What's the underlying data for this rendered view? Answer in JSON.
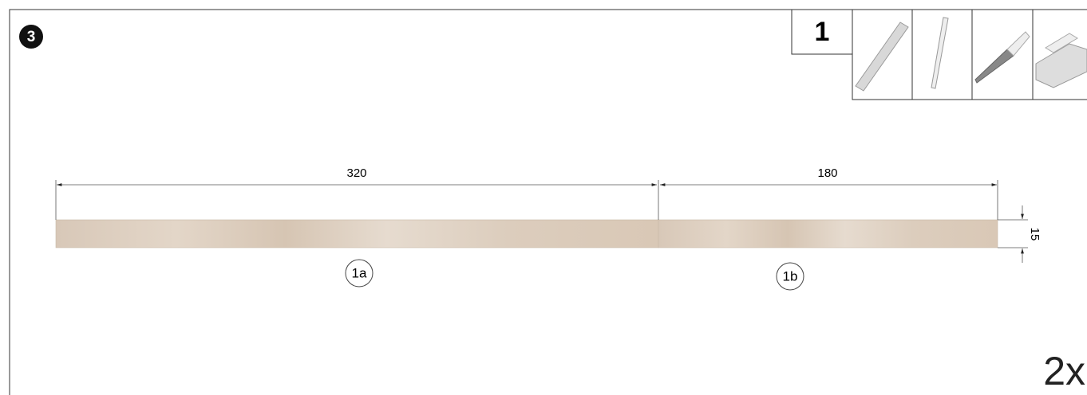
{
  "step": "3",
  "part": {
    "number": "1",
    "pieces": [
      {
        "label": "1a",
        "length": "320"
      },
      {
        "label": "1b",
        "length": "180"
      }
    ],
    "thickness": "15"
  },
  "quantity": "2x"
}
